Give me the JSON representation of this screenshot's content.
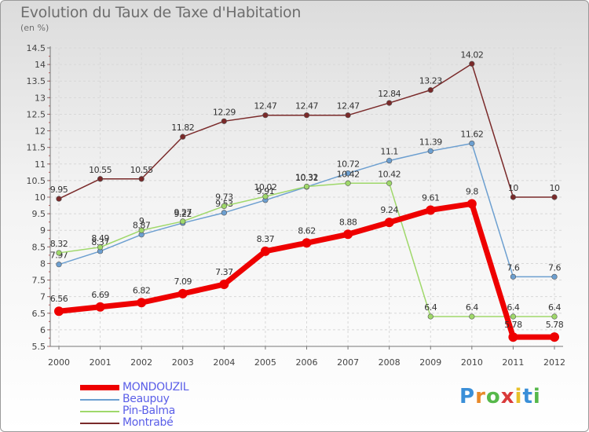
{
  "title": "Evolution du Taux de Taxe d'Habitation",
  "subtitle": "(en %)",
  "logo": {
    "letters": [
      "P",
      "r",
      "o",
      "x",
      "i",
      "t",
      "i"
    ],
    "colors": [
      "#3a8fd8",
      "#e8892a",
      "#56b84a",
      "#d93a3a",
      "#e8c12a",
      "#3a8fd8",
      "#56b84a"
    ]
  },
  "chart_data": {
    "type": "line",
    "x": [
      2000,
      2001,
      2002,
      2003,
      2004,
      2005,
      2006,
      2007,
      2008,
      2009,
      2010,
      2011,
      2012
    ],
    "ylim": [
      5.5,
      14.5
    ],
    "yticks": [
      "5.5",
      "6",
      "6.5",
      "7",
      "7.5",
      "8",
      "8.5",
      "9",
      "9.5",
      "10",
      "10.5",
      "11",
      "11.5",
      "12",
      "12.5",
      "13",
      "13.5",
      "14",
      "14.5"
    ],
    "grid": true,
    "legend_position": "bottom-left",
    "series": [
      {
        "name": "Montrabé",
        "color": "#7a2a2a",
        "values": [
          9.95,
          10.55,
          10.55,
          11.82,
          12.29,
          12.47,
          12.47,
          12.47,
          12.84,
          13.23,
          14.02,
          10,
          10
        ],
        "labels": [
          "9.95",
          "10.55",
          "10.55",
          "11.82",
          "12.29",
          "12.47",
          "12.47",
          "12.47",
          "12.84",
          "13.23",
          "14.02",
          "10",
          "10"
        ]
      },
      {
        "name": "Beaupuy",
        "color": "#6c9fd0",
        "values": [
          7.97,
          8.37,
          8.87,
          9.22,
          9.53,
          9.91,
          10.31,
          10.72,
          11.1,
          11.39,
          11.62,
          7.6,
          7.6
        ],
        "labels": [
          "7.97",
          "8.37",
          "8.87",
          "9.22",
          "9.53",
          "9.91",
          "10.31",
          "10.72",
          "11.1",
          "11.39",
          "11.62",
          "7.6",
          "7.6"
        ]
      },
      {
        "name": "Pin-Balma",
        "color": "#9fd86a",
        "values": [
          8.32,
          8.49,
          9,
          9.27,
          9.73,
          10.02,
          10.32,
          10.42,
          10.42,
          6.4,
          6.4,
          6.4,
          6.4
        ],
        "labels": [
          "8.32",
          "8.49",
          "9",
          "9.27",
          "9.73",
          "10.02",
          "10.32",
          "10.42",
          "10.42",
          "6.4",
          "6.4",
          "6.4",
          "6.4"
        ]
      },
      {
        "name": "MONDOUZIL",
        "color": "#ee0000",
        "values": [
          6.56,
          6.69,
          6.82,
          7.09,
          7.37,
          8.37,
          8.62,
          8.88,
          9.24,
          9.61,
          9.8,
          5.78,
          5.78
        ],
        "labels": [
          "6.56",
          "6.69",
          "6.82",
          "7.09",
          "7.37",
          "8.37",
          "8.62",
          "8.88",
          "9.24",
          "9.61",
          "9.8",
          "5.78",
          "5.78"
        ]
      }
    ],
    "legend_order": [
      "MONDOUZIL",
      "Beaupuy",
      "Pin-Balma",
      "Montrabé"
    ]
  }
}
